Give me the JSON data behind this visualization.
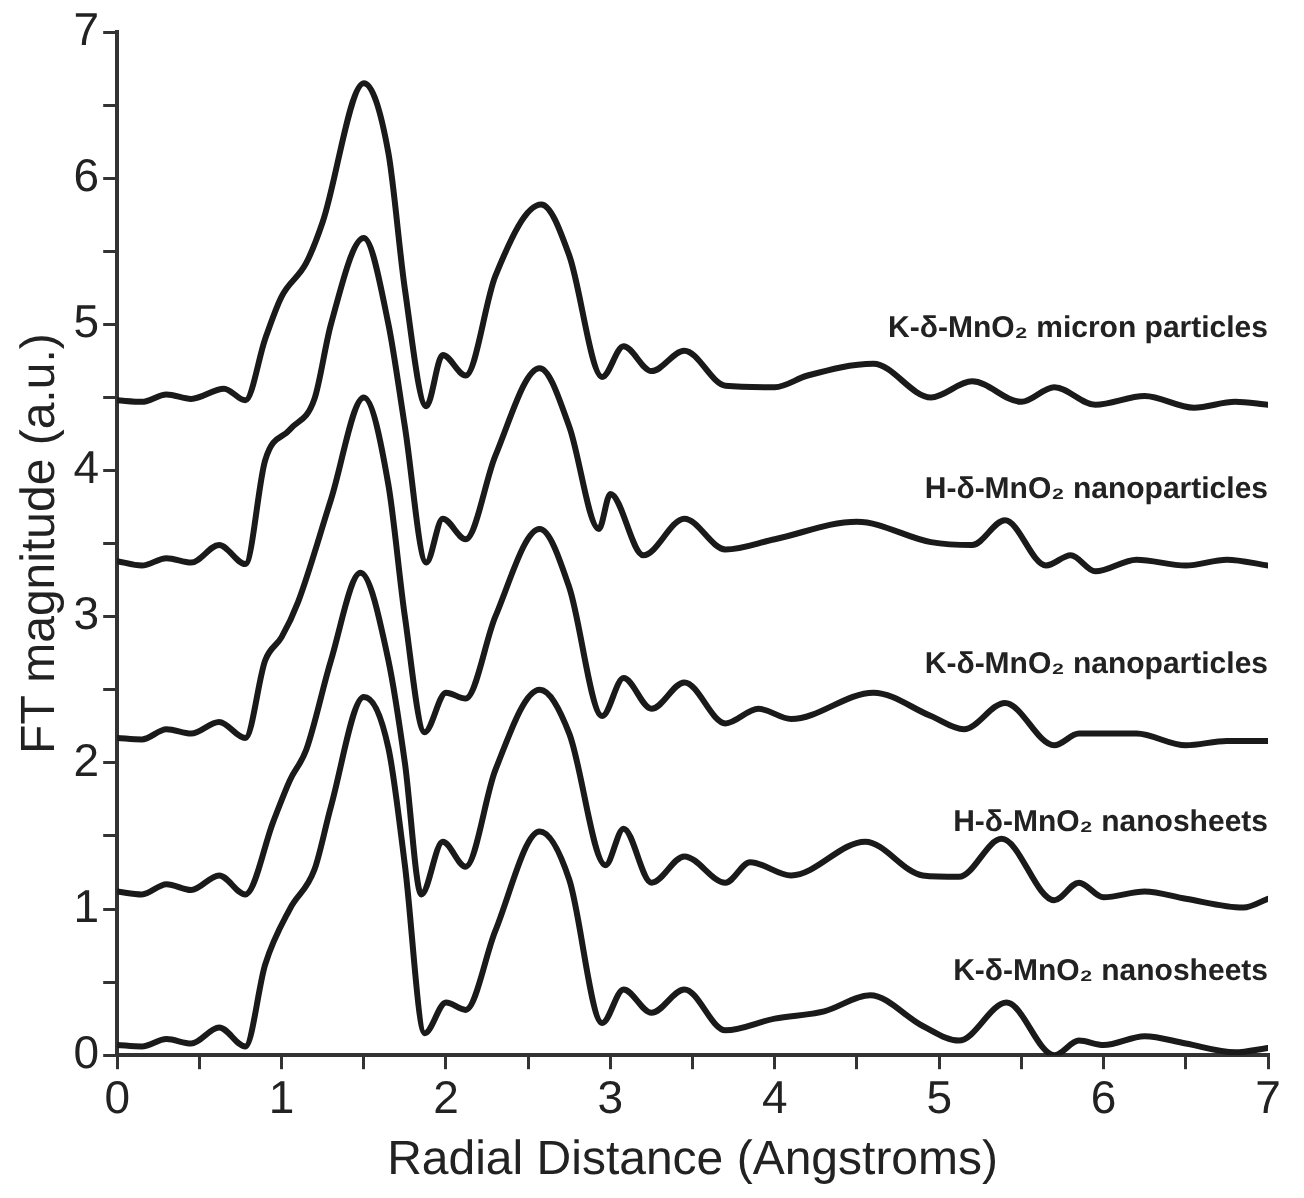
{
  "chart_data": {
    "type": "line",
    "xlabel": "Radial Distance (Angstroms)",
    "ylabel": "FT magnitude (a.u.)",
    "xlim": [
      0,
      7
    ],
    "ylim": [
      0,
      7
    ],
    "xticks": [
      0,
      {
        "value": 0.5,
        "label": null
      },
      1,
      {
        "value": 1.5,
        "label": null
      },
      2,
      {
        "value": 2.5,
        "label": null
      },
      3,
      {
        "value": 3.5,
        "label": null
      },
      4,
      {
        "value": 4.5,
        "label": null
      },
      5,
      {
        "value": 5.5,
        "label": null
      },
      6,
      {
        "value": 6.5,
        "label": null
      },
      7
    ],
    "yticks": [
      0,
      {
        "value": 0.5,
        "label": null
      },
      1,
      {
        "value": 1.5,
        "label": null
      },
      2,
      {
        "value": 2.5,
        "label": null
      },
      3,
      {
        "value": 3.5,
        "label": null
      },
      4,
      {
        "value": 4.5,
        "label": null
      },
      5,
      {
        "value": 5.5,
        "label": null
      },
      6,
      {
        "value": 6.5,
        "label": null
      },
      7
    ],
    "grid": false,
    "legend": false,
    "marker": "none",
    "line_style": "solid",
    "series": [
      {
        "name": "K-δ-MnO₂ micron particles",
        "color": "#1a1a1a",
        "x": [
          0,
          0.15,
          0.3,
          0.45,
          0.65,
          0.78,
          0.9,
          1.0,
          1.15,
          1.25,
          1.5,
          1.65,
          1.75,
          1.88,
          1.98,
          2.12,
          2.3,
          2.58,
          2.75,
          2.95,
          3.08,
          3.25,
          3.45,
          3.7,
          4.0,
          4.2,
          4.6,
          4.95,
          5.2,
          5.5,
          5.7,
          5.95,
          6.25,
          6.55,
          6.8,
          7.0
        ],
        "values": [
          4.48,
          4.47,
          4.52,
          4.49,
          4.56,
          4.48,
          4.9,
          5.19,
          5.42,
          5.7,
          6.65,
          6.17,
          5.24,
          4.44,
          4.79,
          4.65,
          5.33,
          5.82,
          5.47,
          4.64,
          4.85,
          4.68,
          4.82,
          4.58,
          4.57,
          4.65,
          4.73,
          4.5,
          4.61,
          4.47,
          4.57,
          4.45,
          4.51,
          4.43,
          4.47,
          4.45
        ]
      },
      {
        "name": "H-δ-MnO₂ nanoparticles",
        "color": "#1a1a1a",
        "x": [
          0,
          0.15,
          0.3,
          0.45,
          0.62,
          0.78,
          0.9,
          1.05,
          1.2,
          1.3,
          1.5,
          1.65,
          1.75,
          1.88,
          1.98,
          2.12,
          2.3,
          2.57,
          2.75,
          2.93,
          3.0,
          3.2,
          3.45,
          3.7,
          4.0,
          4.5,
          4.95,
          5.2,
          5.4,
          5.65,
          5.8,
          5.95,
          6.2,
          6.5,
          6.75,
          7.0
        ],
        "values": [
          3.38,
          3.35,
          3.4,
          3.37,
          3.49,
          3.36,
          4.07,
          4.28,
          4.49,
          5.0,
          5.59,
          5.0,
          4.3,
          3.37,
          3.67,
          3.53,
          4.1,
          4.7,
          4.3,
          3.6,
          3.84,
          3.42,
          3.67,
          3.46,
          3.53,
          3.65,
          3.51,
          3.49,
          3.66,
          3.35,
          3.42,
          3.31,
          3.39,
          3.35,
          3.39,
          3.35
        ]
      },
      {
        "name": "K-δ-MnO₂ nanoparticles",
        "color": "#1a1a1a",
        "x": [
          0,
          0.15,
          0.3,
          0.45,
          0.62,
          0.78,
          0.9,
          1.0,
          1.1,
          1.3,
          1.5,
          1.65,
          1.75,
          1.87,
          2.0,
          2.12,
          2.3,
          2.57,
          2.75,
          2.95,
          3.08,
          3.25,
          3.45,
          3.7,
          3.9,
          4.1,
          4.6,
          4.95,
          5.15,
          5.4,
          5.7,
          5.85,
          6.2,
          6.5,
          6.75,
          7.0
        ],
        "values": [
          2.17,
          2.16,
          2.23,
          2.2,
          2.28,
          2.17,
          2.7,
          2.86,
          3.1,
          3.8,
          4.5,
          3.9,
          3.0,
          2.21,
          2.48,
          2.44,
          3.0,
          3.6,
          3.2,
          2.32,
          2.58,
          2.37,
          2.55,
          2.27,
          2.37,
          2.3,
          2.48,
          2.32,
          2.23,
          2.41,
          2.12,
          2.2,
          2.2,
          2.12,
          2.15,
          2.15
        ]
      },
      {
        "name": "H-δ-MnO₂ nanosheets",
        "color": "#1a1a1a",
        "x": [
          0,
          0.15,
          0.3,
          0.45,
          0.62,
          0.78,
          0.95,
          1.05,
          1.15,
          1.3,
          1.48,
          1.65,
          1.75,
          1.85,
          1.98,
          2.12,
          2.3,
          2.57,
          2.75,
          2.97,
          3.08,
          3.25,
          3.45,
          3.7,
          3.85,
          4.1,
          4.55,
          4.9,
          5.12,
          5.38,
          5.7,
          5.85,
          6.0,
          6.25,
          6.5,
          6.85,
          7.0
        ],
        "values": [
          1.12,
          1.1,
          1.17,
          1.13,
          1.23,
          1.1,
          1.6,
          1.88,
          2.09,
          2.7,
          3.3,
          2.7,
          2.0,
          1.1,
          1.46,
          1.29,
          1.95,
          2.5,
          2.2,
          1.3,
          1.55,
          1.18,
          1.36,
          1.18,
          1.32,
          1.23,
          1.46,
          1.23,
          1.22,
          1.48,
          1.06,
          1.18,
          1.08,
          1.12,
          1.07,
          1.01,
          1.07
        ]
      },
      {
        "name": "K-δ-MnO₂ nanosheets",
        "color": "#1a1a1a",
        "x": [
          0,
          0.15,
          0.3,
          0.45,
          0.62,
          0.78,
          0.9,
          1.05,
          1.2,
          1.3,
          1.5,
          1.65,
          1.75,
          1.87,
          2.0,
          2.12,
          2.3,
          2.57,
          2.75,
          2.95,
          3.08,
          3.25,
          3.45,
          3.7,
          4.0,
          4.3,
          4.58,
          4.9,
          5.12,
          5.41,
          5.7,
          5.85,
          6.0,
          6.25,
          6.5,
          6.8,
          7.0
        ],
        "values": [
          0.07,
          0.06,
          0.11,
          0.08,
          0.19,
          0.06,
          0.62,
          1.0,
          1.27,
          1.7,
          2.45,
          2.1,
          1.3,
          0.15,
          0.36,
          0.31,
          0.85,
          1.53,
          1.2,
          0.22,
          0.45,
          0.29,
          0.45,
          0.17,
          0.25,
          0.3,
          0.41,
          0.2,
          0.1,
          0.36,
          0.0,
          0.1,
          0.07,
          0.13,
          0.08,
          0.02,
          0.05
        ]
      }
    ]
  }
}
